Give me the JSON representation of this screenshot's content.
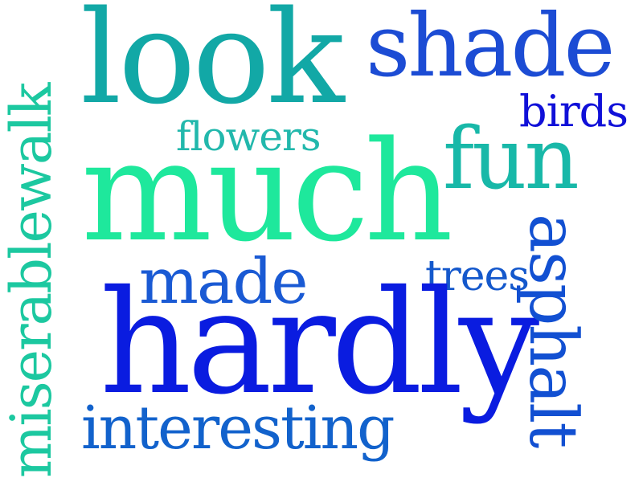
{
  "colors": {
    "background": "#ffffff",
    "teal": "#10a8a4",
    "green": "#1ce8a0",
    "sea": "#20b8a8",
    "blue": "#1450d8",
    "royal": "#1f4fd0",
    "deep": "#1020e0",
    "indigo": "#0a1ad8",
    "azure": "#1058c8",
    "aqua": "#1ac8a0"
  },
  "words": [
    {
      "id": "look",
      "text": "look",
      "color": "#12a8a6"
    },
    {
      "id": "shade",
      "text": "shade",
      "color": "#1c4cd4"
    },
    {
      "id": "birds",
      "text": "birds",
      "color": "#1010d8"
    },
    {
      "id": "flowers",
      "text": "flowers",
      "color": "#22b8ac"
    },
    {
      "id": "fun",
      "text": "fun",
      "color": "#18b8a8"
    },
    {
      "id": "much",
      "text": "much",
      "color": "#1ee89c"
    },
    {
      "id": "made",
      "text": "made",
      "color": "#1a5ad4"
    },
    {
      "id": "trees",
      "text": "trees",
      "color": "#1458cc"
    },
    {
      "id": "hardly",
      "text": "hardly",
      "color": "#0a1ce0"
    },
    {
      "id": "interesting",
      "text": "interesting",
      "color": "#1262cc"
    },
    {
      "id": "miserablewalk",
      "text": "miserablewalk",
      "color": "#1cc8a0"
    },
    {
      "id": "asphalt",
      "text": "asphalt",
      "color": "#1250d2"
    }
  ]
}
